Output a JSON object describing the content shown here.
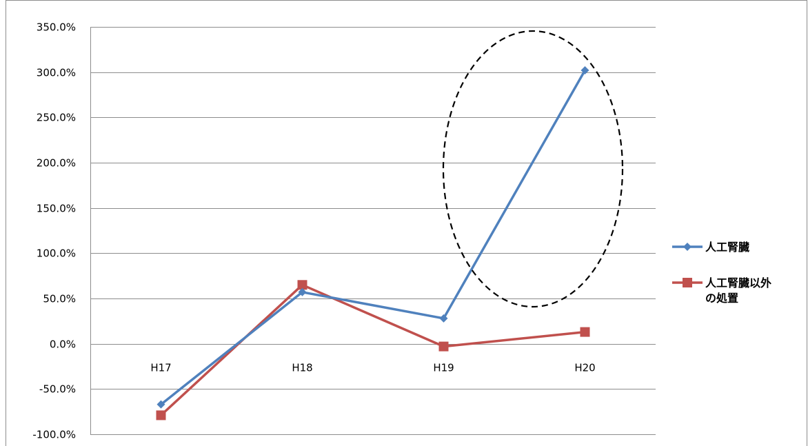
{
  "chart_data": {
    "type": "line",
    "categories": [
      "H17",
      "H18",
      "H19",
      "H20"
    ],
    "series": [
      {
        "name": "人工腎臓",
        "values": [
          -67.0,
          57.0,
          28.0,
          302.0
        ],
        "color": "#4f81bd",
        "marker": "diamond"
      },
      {
        "name": "人工腎臓以外の処置",
        "values": [
          -79.0,
          65.0,
          -3.0,
          13.0
        ],
        "color": "#c0504d",
        "marker": "square"
      }
    ],
    "yticks": [
      "350.0%",
      "300.0%",
      "250.0%",
      "200.0%",
      "150.0%",
      "100.0%",
      "50.0%",
      "0.0%",
      "-50.0%",
      "-100.0%"
    ],
    "ylim": [
      -100,
      350
    ],
    "ystep": 50,
    "grid": true,
    "legend_position": "right",
    "legend": [
      {
        "lines": [
          "人工腎臓"
        ]
      },
      {
        "lines": [
          "人工腎臓以外",
          "の処置"
        ]
      }
    ],
    "annotation": "dashed-ellipse-highlight"
  }
}
